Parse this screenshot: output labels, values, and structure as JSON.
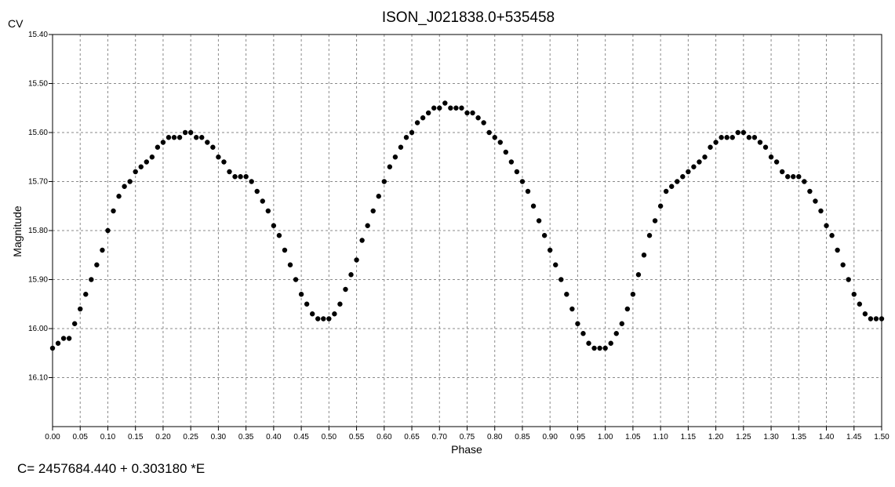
{
  "header": {
    "title": "ISON_J021838.0+535458",
    "corner_label": "CV"
  },
  "footer": {
    "ephemeris": "C= 2457684.440 + 0.303180 *E"
  },
  "chart_data": {
    "type": "scatter",
    "title": "ISON_J021838.0+535458",
    "xlabel": "Phase",
    "ylabel": "Magnitude",
    "xlim": [
      0.0,
      1.5
    ],
    "ylim": [
      15.4,
      16.2
    ],
    "y_inverted": true,
    "grid": true,
    "marker_color": "#000000",
    "x_ticks": [
      "0.00",
      "0.05",
      "0.10",
      "0.15",
      "0.20",
      "0.25",
      "0.30",
      "0.35",
      "0.40",
      "0.45",
      "0.50",
      "0.55",
      "0.60",
      "0.65",
      "0.70",
      "0.75",
      "0.80",
      "0.85",
      "0.90",
      "0.95",
      "1.00",
      "1.05",
      "1.10",
      "1.15",
      "1.20",
      "1.25",
      "1.30",
      "1.35",
      "1.40",
      "1.45",
      "1.50"
    ],
    "y_ticks": [
      "15.40",
      "15.50",
      "15.60",
      "15.70",
      "15.80",
      "15.90",
      "16.00",
      "16.10"
    ],
    "series": [
      {
        "x": [
          0.0,
          0.01,
          0.02,
          0.03,
          0.04,
          0.05,
          0.06,
          0.07,
          0.08,
          0.09,
          0.1,
          0.11,
          0.12,
          0.13,
          0.14,
          0.15,
          0.16,
          0.17,
          0.18,
          0.19,
          0.2,
          0.21,
          0.22,
          0.23,
          0.24,
          0.25,
          0.26,
          0.27,
          0.28,
          0.29,
          0.3,
          0.31,
          0.32,
          0.33,
          0.34,
          0.35,
          0.36,
          0.37,
          0.38,
          0.39,
          0.4,
          0.41,
          0.42,
          0.43,
          0.44,
          0.45,
          0.46,
          0.47,
          0.48,
          0.49,
          0.5,
          0.51,
          0.52,
          0.53,
          0.54,
          0.55,
          0.56,
          0.57,
          0.58,
          0.59,
          0.6,
          0.61,
          0.62,
          0.63,
          0.64,
          0.65,
          0.66,
          0.67,
          0.68,
          0.69,
          0.7,
          0.71,
          0.72,
          0.73,
          0.74,
          0.75,
          0.76,
          0.77,
          0.78,
          0.79,
          0.8,
          0.81,
          0.82,
          0.83,
          0.84,
          0.85,
          0.86,
          0.87,
          0.88,
          0.89,
          0.9,
          0.91,
          0.92,
          0.93,
          0.94,
          0.95,
          0.96,
          0.97,
          0.98,
          0.99,
          1.0,
          1.01,
          1.02,
          1.03,
          1.04,
          1.05,
          1.06,
          1.07,
          1.08,
          1.09,
          1.1,
          1.11,
          1.12,
          1.13,
          1.14,
          1.15,
          1.16,
          1.17,
          1.18,
          1.19,
          1.2,
          1.21,
          1.22,
          1.23,
          1.24,
          1.25,
          1.26,
          1.27,
          1.28,
          1.29,
          1.3,
          1.31,
          1.32,
          1.33,
          1.34,
          1.35,
          1.36,
          1.37,
          1.38,
          1.39,
          1.4,
          1.41,
          1.42,
          1.43,
          1.44,
          1.45,
          1.46,
          1.47,
          1.48,
          1.49,
          1.5
        ],
        "y": [
          16.04,
          16.03,
          16.02,
          16.02,
          15.99,
          15.96,
          15.93,
          15.9,
          15.87,
          15.84,
          15.8,
          15.76,
          15.73,
          15.71,
          15.7,
          15.68,
          15.67,
          15.66,
          15.65,
          15.63,
          15.62,
          15.61,
          15.61,
          15.61,
          15.6,
          15.6,
          15.61,
          15.61,
          15.62,
          15.63,
          15.65,
          15.66,
          15.68,
          15.69,
          15.69,
          15.69,
          15.7,
          15.72,
          15.74,
          15.76,
          15.79,
          15.81,
          15.84,
          15.87,
          15.9,
          15.93,
          15.95,
          15.97,
          15.98,
          15.98,
          15.98,
          15.97,
          15.95,
          15.92,
          15.89,
          15.86,
          15.82,
          15.79,
          15.76,
          15.73,
          15.7,
          15.67,
          15.65,
          15.63,
          15.61,
          15.6,
          15.58,
          15.57,
          15.56,
          15.55,
          15.55,
          15.54,
          15.55,
          15.55,
          15.55,
          15.56,
          15.56,
          15.57,
          15.58,
          15.6,
          15.61,
          15.62,
          15.64,
          15.66,
          15.68,
          15.7,
          15.72,
          15.75,
          15.78,
          15.81,
          15.84,
          15.87,
          15.9,
          15.93,
          15.96,
          15.99,
          16.01,
          16.03,
          16.04,
          16.04,
          16.04,
          16.03,
          16.01,
          15.99,
          15.96,
          15.93,
          15.89,
          15.85,
          15.81,
          15.78,
          15.75,
          15.72,
          15.71,
          15.7,
          15.69,
          15.68,
          15.67,
          15.66,
          15.65,
          15.63,
          15.62,
          15.61,
          15.61,
          15.61,
          15.6,
          15.6,
          15.61,
          15.61,
          15.62,
          15.63,
          15.65,
          15.66,
          15.68,
          15.69,
          15.69,
          15.69,
          15.7,
          15.72,
          15.74,
          15.76,
          15.79,
          15.81,
          15.84,
          15.87,
          15.9,
          15.93,
          15.95,
          15.97,
          15.98,
          15.98,
          15.98
        ]
      }
    ]
  }
}
